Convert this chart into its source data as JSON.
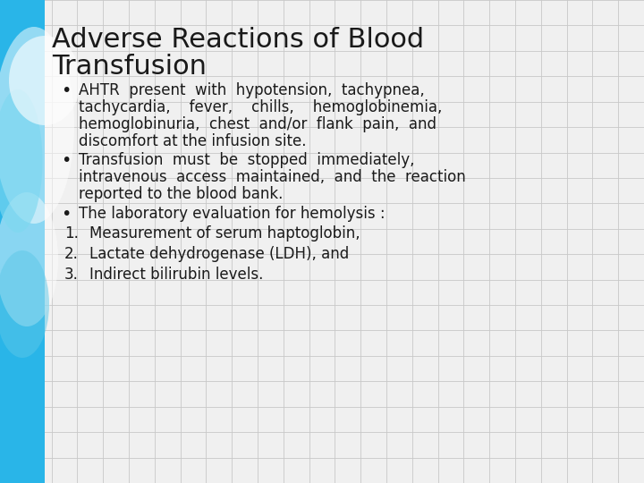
{
  "title_line1": "Adverse Reactions of Blood",
  "title_line2": "Transfusion",
  "title_fontsize": 22,
  "body_fontsize": 12,
  "background_color": "#f0f0f0",
  "grid_color": "#c8c8c8",
  "title_color": "#1a1a1a",
  "text_color": "#1a1a1a",
  "bar_color": "#29b5e8",
  "bullet1_line1": "AHTR  present  with  hypotension,  tachypnea,",
  "bullet1_line2": "tachycardia,    fever,    chills,    hemoglobinemia,",
  "bullet1_line3": "hemoglobinuria,  chest  and/or  flank  pain,  and",
  "bullet1_line4": "discomfort at the infusion site.",
  "bullet2_line1": "Transfusion  must  be  stopped  immediately,",
  "bullet2_line2": "intravenous  access  maintained,  and  the  reaction",
  "bullet2_line3": "reported to the blood bank.",
  "bullet3": "The laboratory evaluation for hemolysis :",
  "num1": "Measurement of serum haptoglobin,",
  "num2": "Lactate dehydrogenase (LDH), and",
  "num3": "Indirect bilirubin levels."
}
